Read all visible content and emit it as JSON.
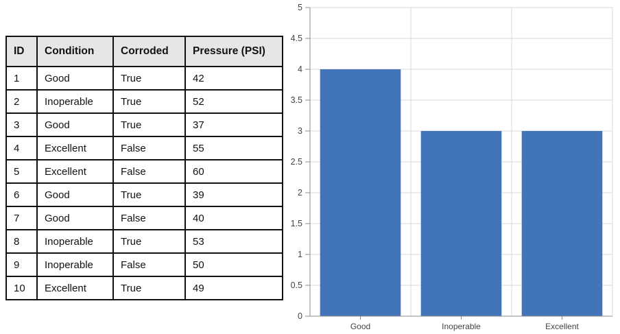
{
  "table": {
    "columns": [
      "ID",
      "Condition",
      "Corroded",
      "Pressure (PSI)"
    ],
    "rows": [
      [
        "1",
        "Good",
        "True",
        "42"
      ],
      [
        "2",
        "Inoperable",
        "True",
        "52"
      ],
      [
        "3",
        "Good",
        "True",
        "37"
      ],
      [
        "4",
        "Excellent",
        "False",
        "55"
      ],
      [
        "5",
        "Excellent",
        "False",
        "60"
      ],
      [
        "6",
        "Good",
        "True",
        "39"
      ],
      [
        "7",
        "Good",
        "False",
        "40"
      ],
      [
        "8",
        "Inoperable",
        "True",
        "53"
      ],
      [
        "9",
        "Inoperable",
        "False",
        "50"
      ],
      [
        "10",
        "Excellent",
        "True",
        "49"
      ]
    ]
  },
  "chart_data": {
    "type": "bar",
    "categories": [
      "Good",
      "Inoperable",
      "Excellent"
    ],
    "values": [
      4,
      3,
      3
    ],
    "title": "",
    "xlabel": "",
    "ylabel": "",
    "ylim": [
      0,
      5
    ],
    "ytick_step": 0.5,
    "ytick_labels": [
      "0",
      "0.5",
      "1",
      "1.5",
      "2",
      "2.5",
      "3",
      "3.5",
      "4",
      "4.5",
      "5"
    ],
    "grid": true,
    "legend": "none",
    "bar_color": "#4274b9",
    "gridline_color": "#d9d9d9",
    "axis_color": "#8c8c8c",
    "label_color": "#444444"
  }
}
